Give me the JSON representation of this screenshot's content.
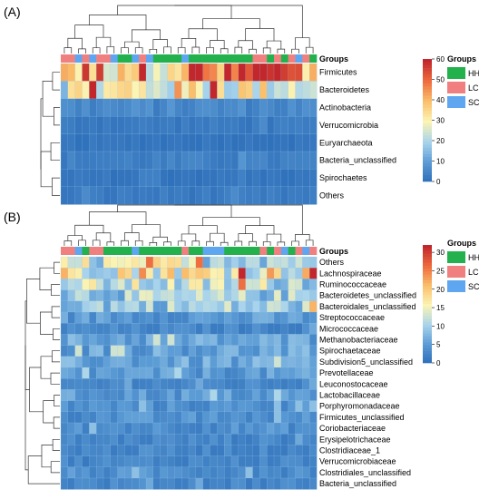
{
  "chart_data": [
    {
      "panel": "(A)",
      "type": "heatmap",
      "column_group_label": "Groups",
      "rows": [
        "Firmicutes",
        "Bacteroidetes",
        "Actinobacteria",
        "Verrucomicrobia",
        "Euryarchaeota",
        "Bacteria_unclassified",
        "Spirochaetes",
        "Others"
      ],
      "n_columns": 36,
      "column_groups": [
        "LC",
        "LC",
        "SC",
        "LC",
        "SC",
        "LC",
        "LC",
        "SC",
        "HH",
        "HH",
        "SC",
        "LC",
        "SC",
        "HH",
        "HH",
        "HH",
        "HH",
        "SC",
        "HH",
        "HH",
        "HH",
        "HH",
        "HH",
        "HH",
        "HH",
        "HH",
        "HH",
        "LC",
        "LC",
        "HH",
        "LC",
        "HH",
        "LC",
        "SC",
        "LC",
        "HH"
      ],
      "row_mean_values": [
        42,
        28,
        6,
        3,
        2,
        4,
        2,
        3
      ],
      "colorbar": {
        "min": 0,
        "max": 60,
        "ticks": [
          0,
          10,
          20,
          30,
          40,
          50,
          60
        ]
      },
      "legend": {
        "title": "Groups",
        "items": [
          "HH",
          "LC",
          "SC"
        ]
      }
    },
    {
      "panel": "(B)",
      "type": "heatmap",
      "column_group_label": "Groups",
      "rows": [
        "Others",
        "Lachnospiraceae",
        "Ruminococcaceae",
        "Bacteroidetes_unclassified",
        "Bacteroidales_unclassified",
        "Streptococcaceae",
        "Micrococcaceae",
        "Methanobacteriaceae",
        "Spirochaetaceae",
        "Subdivision5_unclassified",
        "Prevotellaceae",
        "Leuconostocaceae",
        "Lactobacillaceae",
        "Porphyromonadaceae",
        "Firmicutes_unclassified",
        "Coriobacteriaceae",
        "Erysipelotrichaceae",
        "Clostridiaceae_1",
        "Verrucomicrobiaceae",
        "Clostridiales_unclassified",
        "Bacteria_unclassified"
      ],
      "n_columns": 36,
      "column_groups": [
        "LC",
        "LC",
        "SC",
        "HH",
        "LC",
        "LC",
        "HH",
        "HH",
        "HH",
        "HH",
        "SC",
        "HH",
        "HH",
        "HH",
        "HH",
        "HH",
        "HH",
        "LC",
        "HH",
        "HH",
        "SC",
        "SC",
        "SC",
        "HH",
        "HH",
        "HH",
        "HH",
        "HH",
        "LC",
        "HH",
        "LC",
        "SC",
        "HH",
        "LC",
        "SC",
        "LC"
      ],
      "row_mean_values": [
        12,
        16,
        12,
        10,
        10,
        5,
        3,
        6,
        6,
        6,
        5,
        3,
        5,
        4,
        4,
        4,
        3,
        3,
        3,
        4,
        3
      ],
      "colorbar": {
        "min": 0,
        "max": 32,
        "ticks": [
          0,
          5,
          10,
          15,
          20,
          25,
          30
        ]
      },
      "legend": {
        "title": "Groups",
        "items": [
          "HH",
          "LC",
          "SC"
        ]
      }
    }
  ],
  "colors": {
    "HH": "#22b14c",
    "LC": "#f08080",
    "SC": "#5ea7f0",
    "scale": [
      "#2b6cb8",
      "#5b9bd5",
      "#a9d4ec",
      "#fbf4b4",
      "#fbbf6b",
      "#ee6a3d",
      "#c1272d"
    ]
  }
}
